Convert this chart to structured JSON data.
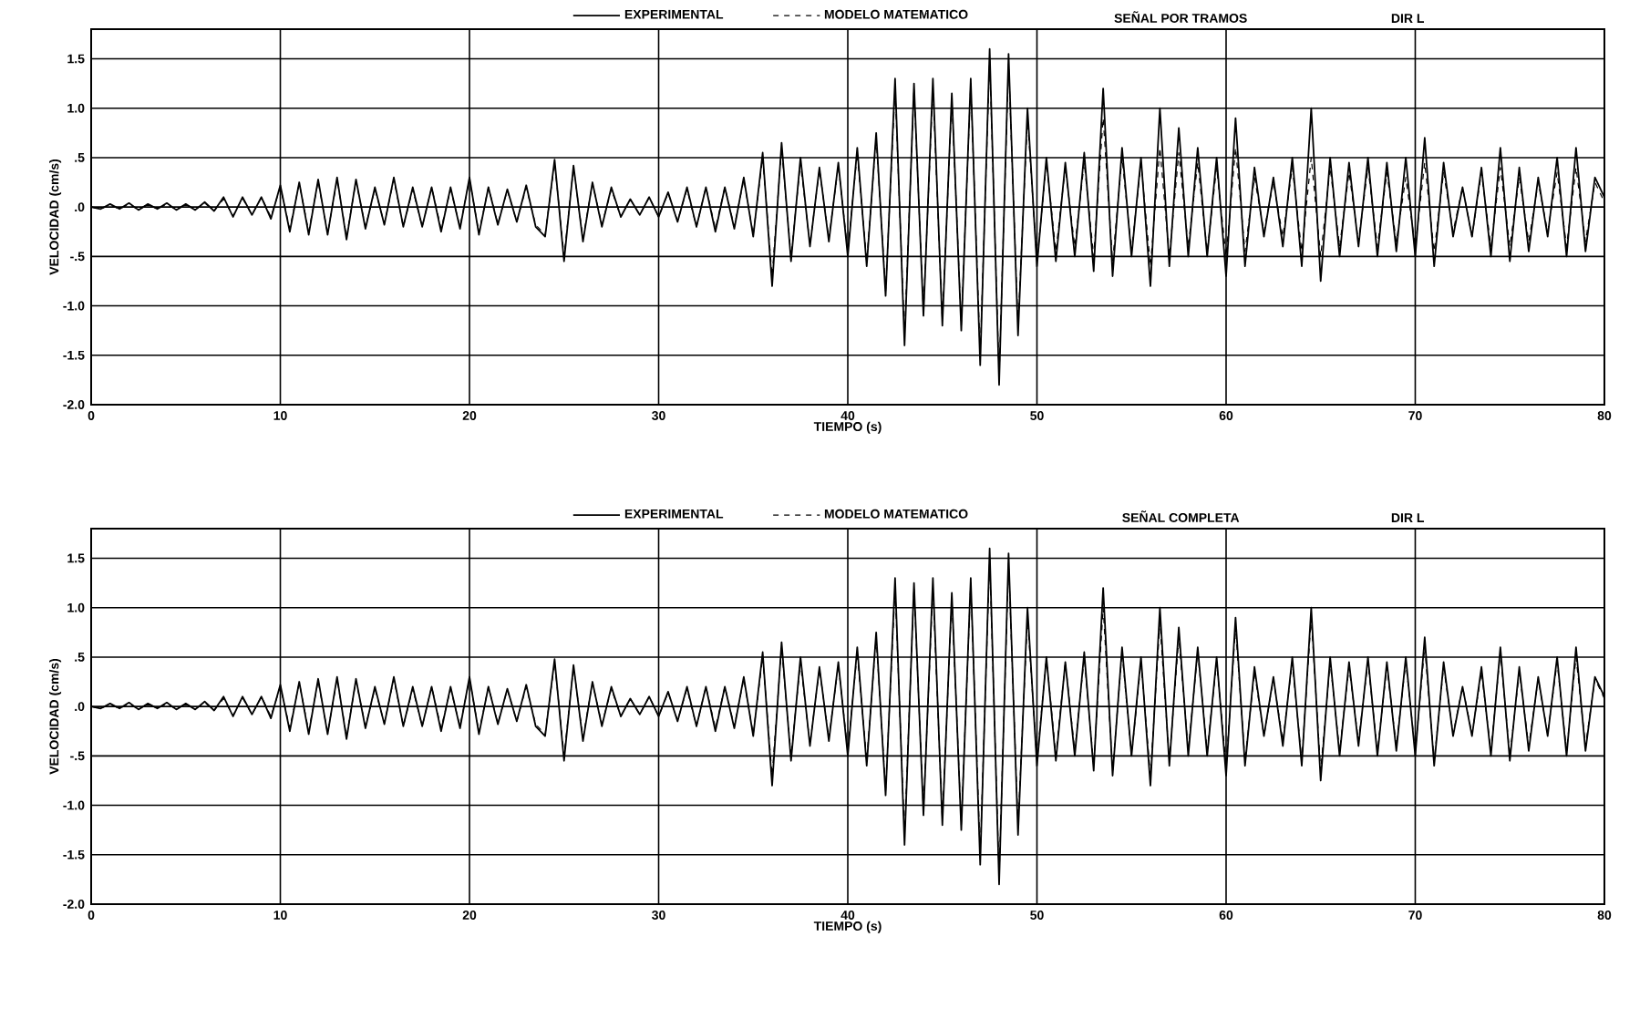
{
  "chart_data": [
    {
      "type": "line",
      "title": "SEÑAL POR TRAMOS",
      "subtitle": "DIR L",
      "xlabel": "TIEMPO (s)",
      "ylabel": "VELOCIDAD (cm/s)",
      "xlim": [
        0,
        80
      ],
      "xticks": [
        0,
        10,
        20,
        30,
        40,
        50,
        60,
        70,
        80
      ],
      "ylim": [
        -2.0,
        1.8
      ],
      "yticks": [
        {
          "value": -2.0,
          "label": "-2.0"
        },
        {
          "value": -1.5,
          "label": "-1.5"
        },
        {
          "value": -1.0,
          "label": "-1.0"
        },
        {
          "value": -0.5,
          "label": "-.5"
        },
        {
          "value": 0,
          "label": ".0"
        },
        {
          "value": 0.5,
          "label": ".5"
        },
        {
          "value": 1.0,
          "label": "1.0"
        },
        {
          "value": 1.5,
          "label": "1.5"
        }
      ],
      "grid": true,
      "legend": "top",
      "x": [
        0,
        0.5,
        1,
        1.5,
        2,
        2.5,
        3,
        3.5,
        4,
        4.5,
        5,
        5.5,
        6,
        6.5,
        7,
        7.5,
        8,
        8.5,
        9,
        9.5,
        10,
        10.5,
        11,
        11.5,
        12,
        12.5,
        13,
        13.5,
        14,
        14.5,
        15,
        15.5,
        16,
        16.5,
        17,
        17.5,
        18,
        18.5,
        19,
        19.5,
        20,
        20.5,
        21,
        21.5,
        22,
        22.5,
        23,
        23.5,
        24,
        24.5,
        25,
        25.5,
        26,
        26.5,
        27,
        27.5,
        28,
        28.5,
        29,
        29.5,
        30,
        30.5,
        31,
        31.5,
        32,
        32.5,
        33,
        33.5,
        34,
        34.5,
        35,
        35.5,
        36,
        36.5,
        37,
        37.5,
        38,
        38.5,
        39,
        39.5,
        40,
        40.5,
        41,
        41.5,
        42,
        42.5,
        43,
        43.5,
        44,
        44.5,
        45,
        45.5,
        46,
        46.5,
        47,
        47.5,
        48,
        48.5,
        49,
        49.5,
        50,
        50.5,
        51,
        51.5,
        52,
        52.5,
        53,
        53.5,
        54,
        54.5,
        55,
        55.5,
        56,
        56.5,
        57,
        57.5,
        58,
        58.5,
        59,
        59.5,
        60,
        60.5,
        61,
        61.5,
        62,
        62.5,
        63,
        63.5,
        64,
        64.5,
        65,
        65.5,
        66,
        66.5,
        67,
        67.5,
        68,
        68.5,
        69,
        69.5,
        70,
        70.5,
        71,
        71.5,
        72,
        72.5,
        73,
        73.5,
        74,
        74.5,
        75,
        75.5,
        76,
        76.5,
        77,
        77.5,
        78,
        78.5,
        79,
        79.5,
        80
      ],
      "series": [
        {
          "name": "EXPERIMENTAL",
          "color": "#000000",
          "line_style": "solid",
          "values": [
            0,
            -0.02,
            0.03,
            -0.02,
            0.04,
            -0.03,
            0.03,
            -0.02,
            0.04,
            -0.03,
            0.03,
            -0.03,
            0.05,
            -0.04,
            0.1,
            -0.1,
            0.1,
            -0.08,
            0.1,
            -0.12,
            0.22,
            -0.25,
            0.25,
            -0.28,
            0.28,
            -0.28,
            0.3,
            -0.33,
            0.28,
            -0.22,
            0.2,
            -0.18,
            0.3,
            -0.2,
            0.2,
            -0.2,
            0.2,
            -0.25,
            0.2,
            -0.22,
            0.3,
            -0.28,
            0.2,
            -0.18,
            0.18,
            -0.15,
            0.22,
            -0.2,
            -0.3,
            0.48,
            -0.55,
            0.42,
            -0.35,
            0.25,
            -0.2,
            0.2,
            -0.1,
            0.08,
            -0.08,
            0.1,
            -0.1,
            0.15,
            -0.15,
            0.2,
            -0.2,
            0.2,
            -0.25,
            0.2,
            -0.22,
            0.3,
            -0.3,
            0.55,
            -0.8,
            0.65,
            -0.55,
            0.5,
            -0.4,
            0.4,
            -0.35,
            0.45,
            -0.5,
            0.6,
            -0.6,
            0.75,
            -0.9,
            1.3,
            -1.4,
            1.25,
            -1.1,
            1.3,
            -1.2,
            1.15,
            -1.25,
            1.3,
            -1.6,
            1.6,
            -1.8,
            1.55,
            -1.3,
            1.0,
            -0.6,
            0.5,
            -0.55,
            0.45,
            -0.5,
            0.55,
            -0.65,
            1.2,
            -0.7,
            0.6,
            -0.5,
            0.5,
            -0.8,
            1.0,
            -0.6,
            0.8,
            -0.5,
            0.6,
            -0.5,
            0.5,
            -0.7,
            0.9,
            -0.6,
            0.4,
            -0.3,
            0.3,
            -0.4,
            0.5,
            -0.6,
            1.0,
            -0.75,
            0.5,
            -0.5,
            0.45,
            -0.4,
            0.5,
            -0.5,
            0.45,
            -0.45,
            0.5,
            -0.5,
            0.7,
            -0.6,
            0.45,
            -0.3,
            0.2,
            -0.3,
            0.4,
            -0.5,
            0.6,
            -0.55,
            0.4,
            -0.45,
            0.3,
            -0.3,
            0.5,
            -0.5,
            0.6,
            -0.45,
            0.3,
            0.1
          ]
        },
        {
          "name": "MODELO MATEMATICO",
          "color": "#000000",
          "line_style": "dashed",
          "values": [
            0,
            -0.02,
            0.02,
            -0.02,
            0.03,
            -0.03,
            0.03,
            -0.02,
            0.03,
            -0.03,
            0.03,
            -0.03,
            0.04,
            -0.04,
            0.08,
            -0.09,
            0.09,
            -0.08,
            0.1,
            -0.1,
            0.2,
            -0.22,
            0.24,
            -0.25,
            0.26,
            -0.27,
            0.28,
            -0.3,
            0.26,
            -0.2,
            0.18,
            -0.17,
            0.28,
            -0.2,
            0.18,
            -0.2,
            0.2,
            -0.22,
            0.18,
            -0.2,
            0.28,
            -0.26,
            0.2,
            -0.17,
            0.17,
            -0.15,
            0.2,
            -0.18,
            -0.28,
            0.45,
            -0.5,
            0.4,
            -0.32,
            0.24,
            -0.18,
            0.18,
            -0.1,
            0.08,
            -0.08,
            0.1,
            -0.1,
            0.14,
            -0.14,
            0.18,
            -0.2,
            0.2,
            -0.22,
            0.2,
            -0.2,
            0.28,
            -0.28,
            0.5,
            -0.7,
            0.6,
            -0.5,
            0.45,
            -0.38,
            0.38,
            -0.32,
            0.42,
            -0.45,
            0.55,
            -0.55,
            0.7,
            -0.85,
            1.2,
            -1.3,
            1.2,
            -1.05,
            1.2,
            -1.15,
            1.1,
            -1.2,
            1.25,
            -1.5,
            1.5,
            -1.7,
            1.45,
            -1.2,
            0.9,
            -0.55,
            0.45,
            -0.45,
            0.4,
            -0.4,
            0.45,
            -0.5,
            0.9,
            -0.55,
            0.5,
            -0.45,
            0.45,
            -0.6,
            0.6,
            -0.5,
            0.55,
            -0.4,
            0.45,
            -0.45,
            0.4,
            -0.5,
            0.6,
            -0.45,
            0.3,
            -0.25,
            0.25,
            -0.3,
            0.4,
            -0.45,
            0.5,
            -0.5,
            0.4,
            -0.4,
            0.35,
            -0.35,
            0.4,
            -0.4,
            0.35,
            -0.35,
            0.3,
            -0.4,
            0.45,
            -0.45,
            0.35,
            -0.25,
            0.2,
            -0.3,
            0.35,
            -0.4,
            0.4,
            -0.4,
            0.3,
            -0.35,
            0.25,
            -0.25,
            0.35,
            -0.4,
            0.4,
            -0.35,
            0.25,
            0.05
          ]
        }
      ]
    },
    {
      "type": "line",
      "title": "SEÑAL COMPLETA",
      "subtitle": "DIR L",
      "xlabel": "TIEMPO (s)",
      "ylabel": "VELOCIDAD (cm/s)",
      "xlim": [
        0,
        80
      ],
      "xticks": [
        0,
        10,
        20,
        30,
        40,
        50,
        60,
        70,
        80
      ],
      "ylim": [
        -2.0,
        1.8
      ],
      "yticks": [
        {
          "value": -2.0,
          "label": "-2.0"
        },
        {
          "value": -1.5,
          "label": "-1.5"
        },
        {
          "value": -1.0,
          "label": "-1.0"
        },
        {
          "value": -0.5,
          "label": "-.5"
        },
        {
          "value": 0,
          "label": ".0"
        },
        {
          "value": 0.5,
          "label": ".5"
        },
        {
          "value": 1.0,
          "label": "1.0"
        },
        {
          "value": 1.5,
          "label": "1.5"
        }
      ],
      "grid": true,
      "legend": "top",
      "x": [
        0,
        0.5,
        1,
        1.5,
        2,
        2.5,
        3,
        3.5,
        4,
        4.5,
        5,
        5.5,
        6,
        6.5,
        7,
        7.5,
        8,
        8.5,
        9,
        9.5,
        10,
        10.5,
        11,
        11.5,
        12,
        12.5,
        13,
        13.5,
        14,
        14.5,
        15,
        15.5,
        16,
        16.5,
        17,
        17.5,
        18,
        18.5,
        19,
        19.5,
        20,
        20.5,
        21,
        21.5,
        22,
        22.5,
        23,
        23.5,
        24,
        24.5,
        25,
        25.5,
        26,
        26.5,
        27,
        27.5,
        28,
        28.5,
        29,
        29.5,
        30,
        30.5,
        31,
        31.5,
        32,
        32.5,
        33,
        33.5,
        34,
        34.5,
        35,
        35.5,
        36,
        36.5,
        37,
        37.5,
        38,
        38.5,
        39,
        39.5,
        40,
        40.5,
        41,
        41.5,
        42,
        42.5,
        43,
        43.5,
        44,
        44.5,
        45,
        45.5,
        46,
        46.5,
        47,
        47.5,
        48,
        48.5,
        49,
        49.5,
        50,
        50.5,
        51,
        51.5,
        52,
        52.5,
        53,
        53.5,
        54,
        54.5,
        55,
        55.5,
        56,
        56.5,
        57,
        57.5,
        58,
        58.5,
        59,
        59.5,
        60,
        60.5,
        61,
        61.5,
        62,
        62.5,
        63,
        63.5,
        64,
        64.5,
        65,
        65.5,
        66,
        66.5,
        67,
        67.5,
        68,
        68.5,
        69,
        69.5,
        70,
        70.5,
        71,
        71.5,
        72,
        72.5,
        73,
        73.5,
        74,
        74.5,
        75,
        75.5,
        76,
        76.5,
        77,
        77.5,
        78,
        78.5,
        79,
        79.5,
        80
      ],
      "series": [
        {
          "name": "EXPERIMENTAL",
          "color": "#000000",
          "line_style": "solid",
          "values": [
            0,
            -0.02,
            0.03,
            -0.02,
            0.04,
            -0.03,
            0.03,
            -0.02,
            0.04,
            -0.03,
            0.03,
            -0.03,
            0.05,
            -0.04,
            0.1,
            -0.1,
            0.1,
            -0.08,
            0.1,
            -0.12,
            0.22,
            -0.25,
            0.25,
            -0.28,
            0.28,
            -0.28,
            0.3,
            -0.33,
            0.28,
            -0.22,
            0.2,
            -0.18,
            0.3,
            -0.2,
            0.2,
            -0.2,
            0.2,
            -0.25,
            0.2,
            -0.22,
            0.3,
            -0.28,
            0.2,
            -0.18,
            0.18,
            -0.15,
            0.22,
            -0.2,
            -0.3,
            0.48,
            -0.55,
            0.42,
            -0.35,
            0.25,
            -0.2,
            0.2,
            -0.1,
            0.08,
            -0.08,
            0.1,
            -0.1,
            0.15,
            -0.15,
            0.2,
            -0.2,
            0.2,
            -0.25,
            0.2,
            -0.22,
            0.3,
            -0.3,
            0.55,
            -0.8,
            0.65,
            -0.55,
            0.5,
            -0.4,
            0.4,
            -0.35,
            0.45,
            -0.5,
            0.6,
            -0.6,
            0.75,
            -0.9,
            1.3,
            -1.4,
            1.25,
            -1.1,
            1.3,
            -1.2,
            1.15,
            -1.25,
            1.3,
            -1.6,
            1.6,
            -1.8,
            1.55,
            -1.3,
            1.0,
            -0.6,
            0.5,
            -0.55,
            0.45,
            -0.5,
            0.55,
            -0.65,
            1.2,
            -0.7,
            0.6,
            -0.5,
            0.5,
            -0.8,
            1.0,
            -0.6,
            0.8,
            -0.5,
            0.6,
            -0.5,
            0.5,
            -0.7,
            0.9,
            -0.6,
            0.4,
            -0.3,
            0.3,
            -0.4,
            0.5,
            -0.6,
            1.0,
            -0.75,
            0.5,
            -0.5,
            0.45,
            -0.4,
            0.5,
            -0.5,
            0.45,
            -0.45,
            0.5,
            -0.5,
            0.7,
            -0.6,
            0.45,
            -0.3,
            0.2,
            -0.3,
            0.4,
            -0.5,
            0.6,
            -0.55,
            0.4,
            -0.45,
            0.3,
            -0.3,
            0.5,
            -0.5,
            0.6,
            -0.45,
            0.3,
            0.1
          ]
        },
        {
          "name": "MODELO MATEMATICO",
          "color": "#000000",
          "line_style": "dashed",
          "values": [
            0,
            -0.02,
            0.02,
            -0.02,
            0.03,
            -0.03,
            0.03,
            -0.02,
            0.03,
            -0.03,
            0.03,
            -0.03,
            0.04,
            -0.04,
            0.08,
            -0.09,
            0.09,
            -0.08,
            0.1,
            -0.1,
            0.2,
            -0.22,
            0.24,
            -0.25,
            0.26,
            -0.27,
            0.28,
            -0.3,
            0.26,
            -0.2,
            0.18,
            -0.17,
            0.28,
            -0.2,
            0.18,
            -0.2,
            0.2,
            -0.22,
            0.18,
            -0.2,
            0.28,
            -0.26,
            0.2,
            -0.17,
            0.17,
            -0.15,
            0.2,
            -0.18,
            -0.28,
            0.45,
            -0.5,
            0.4,
            -0.32,
            0.24,
            -0.18,
            0.18,
            -0.1,
            0.08,
            -0.08,
            0.1,
            -0.1,
            0.14,
            -0.14,
            0.18,
            -0.2,
            0.2,
            -0.22,
            0.2,
            -0.2,
            0.28,
            -0.28,
            0.5,
            -0.7,
            0.6,
            -0.5,
            0.45,
            -0.38,
            0.38,
            -0.32,
            0.42,
            -0.45,
            0.55,
            -0.55,
            0.7,
            -0.85,
            1.2,
            -1.3,
            1.2,
            -1.05,
            1.2,
            -1.15,
            1.1,
            -1.2,
            1.25,
            -1.5,
            1.5,
            -1.7,
            1.45,
            -1.2,
            0.9,
            -0.55,
            0.5,
            -0.5,
            0.45,
            -0.45,
            0.5,
            -0.6,
            1.0,
            -0.65,
            0.55,
            -0.5,
            0.45,
            -0.7,
            0.85,
            -0.55,
            0.7,
            -0.45,
            0.55,
            -0.45,
            0.45,
            -0.6,
            0.8,
            -0.55,
            0.35,
            -0.3,
            0.28,
            -0.35,
            0.45,
            -0.55,
            0.9,
            -0.65,
            0.45,
            -0.45,
            0.4,
            -0.35,
            0.45,
            -0.45,
            0.4,
            -0.4,
            0.45,
            -0.45,
            0.6,
            -0.55,
            0.4,
            -0.28,
            0.2,
            -0.28,
            0.35,
            -0.45,
            0.55,
            -0.5,
            0.35,
            -0.4,
            0.28,
            -0.28,
            0.45,
            -0.45,
            0.5,
            -0.4,
            0.28,
            0.08
          ]
        }
      ]
    }
  ]
}
